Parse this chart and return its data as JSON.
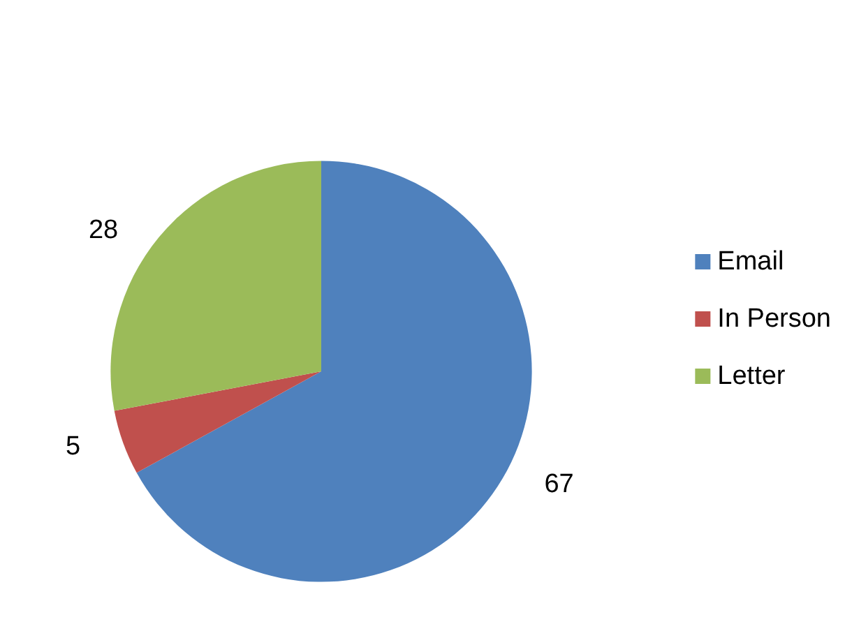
{
  "chart_data": {
    "type": "pie",
    "categories": [
      "Email",
      "In Person",
      "Letter"
    ],
    "values": [
      67,
      5,
      28
    ],
    "colors": [
      "#4f81bd",
      "#c0504d",
      "#9bbb59"
    ],
    "data_labels": true,
    "legend": "right"
  }
}
